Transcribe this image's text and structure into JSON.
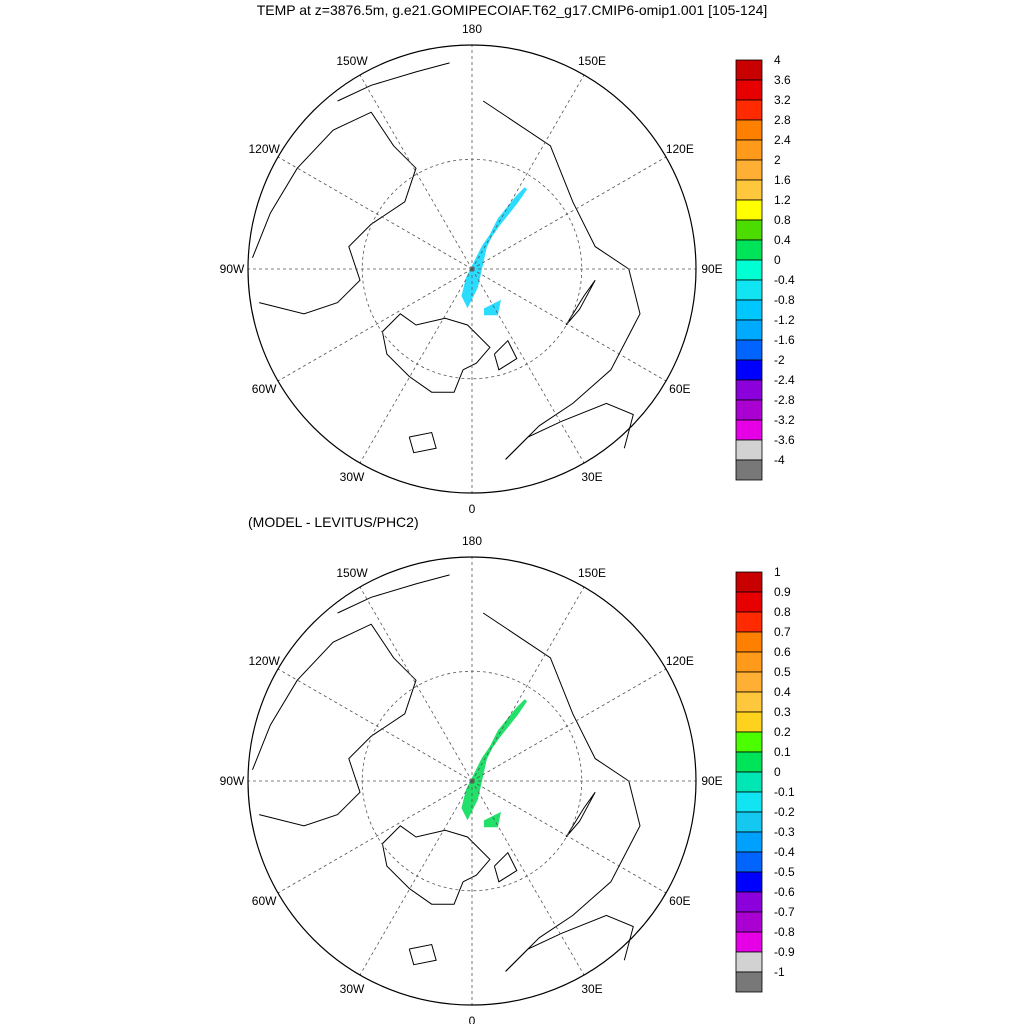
{
  "title": "TEMP at z=3876.5m, g.e21.GOMIPECOIAF.T62_g17.CMIP6-omip1.001 [105-124]",
  "maps": [
    {
      "subtitle": "",
      "lon_labels": [
        "180",
        "150E",
        "120E",
        "90E",
        "60E",
        "30E",
        "0",
        "30W",
        "60W",
        "90W",
        "120W",
        "150W"
      ],
      "colorbar": {
        "labels": [
          "4",
          "3.6",
          "3.2",
          "2.8",
          "2.4",
          "2",
          "1.6",
          "1.2",
          "0.8",
          "0.4",
          "0",
          "-0.4",
          "-0.8",
          "-1.2",
          "-1.6",
          "-2",
          "-2.4",
          "-2.8",
          "-3.2",
          "-3.6",
          "-4"
        ],
        "colors": [
          "#c80000",
          "#e60000",
          "#ff2a00",
          "#ff8000",
          "#ff9a1a",
          "#ffaf33",
          "#ffc83c",
          "#ffff00",
          "#4cdc00",
          "#00e45a",
          "#00ffd2",
          "#12e5f2",
          "#00c8ff",
          "#00aaff",
          "#0064ff",
          "#0000ff",
          "#8c00dc",
          "#aa00d2",
          "#e600e6",
          "#d2d2d2",
          "#787878"
        ]
      },
      "field": {
        "value_range": [
          -0.8,
          -0.4
        ],
        "fill_color": "#2bdcff"
      }
    },
    {
      "subtitle": "(MODEL - LEVITUS/PHC2)",
      "lon_labels": [
        "180",
        "150E",
        "120E",
        "90E",
        "60E",
        "30E",
        "0",
        "30W",
        "60W",
        "90W",
        "120W",
        "150W"
      ],
      "colorbar": {
        "labels": [
          "1",
          "0.9",
          "0.8",
          "0.7",
          "0.6",
          "0.5",
          "0.4",
          "0.3",
          "0.2",
          "0.1",
          "0",
          "-0.1",
          "-0.2",
          "-0.3",
          "-0.4",
          "-0.5",
          "-0.6",
          "-0.7",
          "-0.8",
          "-0.9",
          "-1"
        ],
        "colors": [
          "#c80000",
          "#e60000",
          "#ff2a00",
          "#ff8000",
          "#ff9a1a",
          "#ffaf33",
          "#ffc83c",
          "#ffd21e",
          "#4cff00",
          "#00e45a",
          "#00e6b4",
          "#12e5f2",
          "#14c8f0",
          "#00a0ff",
          "#0064ff",
          "#0000ff",
          "#8c00dc",
          "#aa00d2",
          "#e600e6",
          "#d2d2d2",
          "#787878"
        ]
      },
      "field": {
        "value_range": [
          0,
          0.1
        ],
        "fill_color": "#22e06a"
      }
    }
  ]
}
